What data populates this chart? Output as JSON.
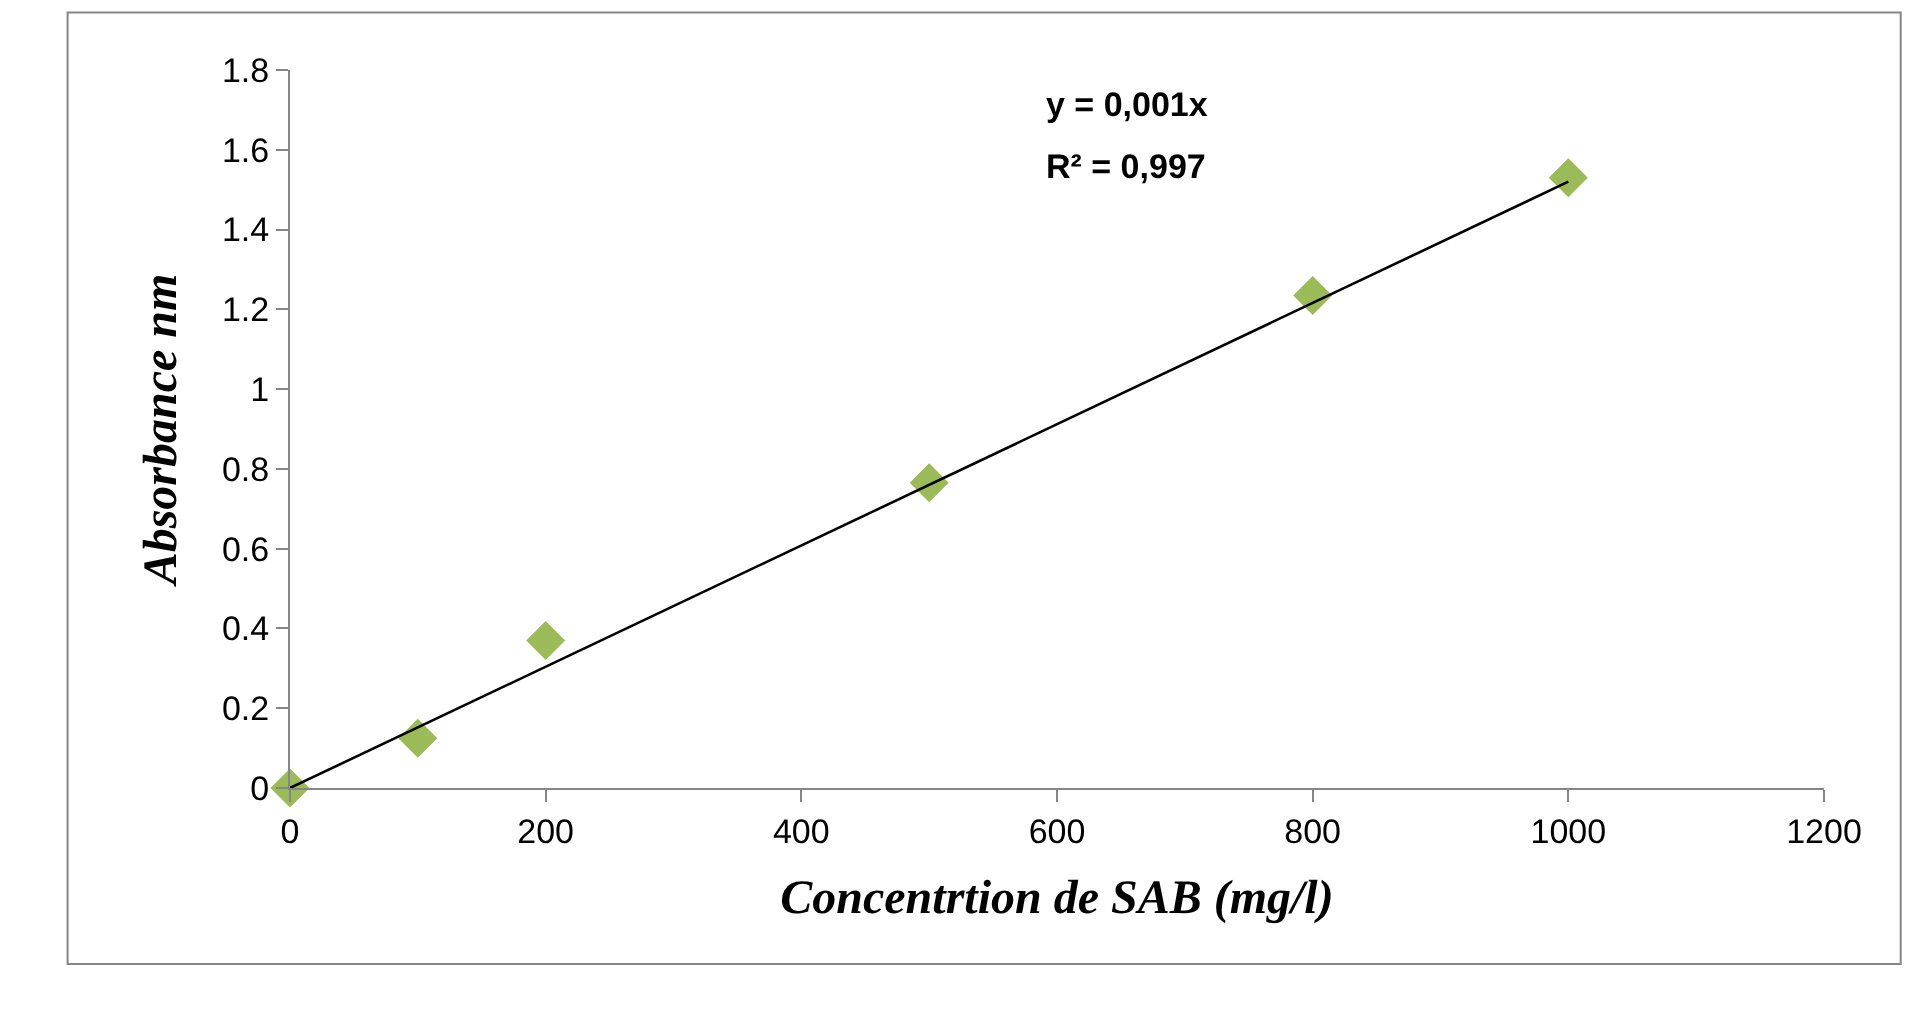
{
  "chart_data": {
    "type": "scatter",
    "xlabel": "Concentrtion de SAB (mg/l)",
    "ylabel": "Absorbance nm",
    "annotations": [
      "y = 0,001x",
      "R² = 0,997"
    ],
    "series": [
      {
        "color": "#9bbb59",
        "marker": "diamond",
        "x": [
          0,
          100,
          200,
          500,
          800,
          1000
        ],
        "values": [
          0,
          0.125,
          0.37,
          0.765,
          1.235,
          1.53
        ]
      },
      {
        "type": "line",
        "color": "#000000",
        "marker": "none",
        "line_style": "solid",
        "x": [
          0,
          1000
        ],
        "values": [
          0,
          1.52
        ]
      }
    ],
    "xlim": [
      0,
      1200
    ],
    "xticks": [
      0,
      200,
      400,
      600,
      800,
      1000,
      1200
    ],
    "ylim": [
      0,
      1.8
    ],
    "yticks": [
      0,
      0.2,
      0.4,
      0.6,
      0.8,
      1,
      1.2,
      1.4,
      1.6,
      1.8
    ]
  }
}
